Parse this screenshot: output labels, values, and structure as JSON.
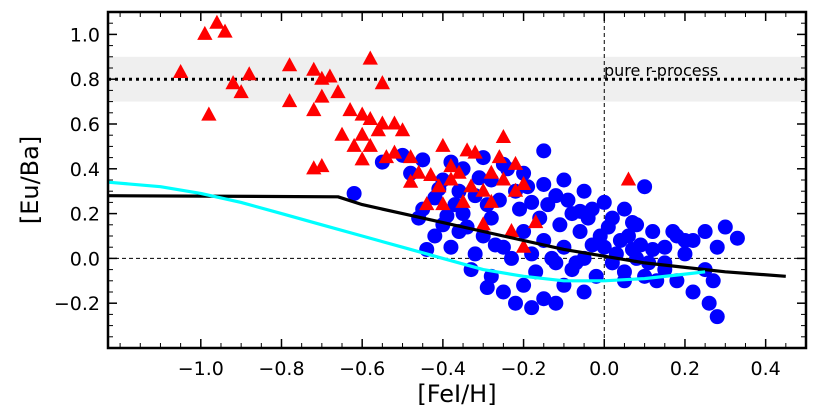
{
  "chart_data": {
    "type": "scatter",
    "xlabel": "[FeI/H]",
    "ylabel": "[Eu/Ba]",
    "xlim": [
      -1.23,
      0.5
    ],
    "ylim": [
      -0.4,
      1.1
    ],
    "xticks": [
      -1.0,
      -0.8,
      -0.6,
      -0.4,
      -0.2,
      0.0,
      0.2,
      0.4
    ],
    "xtick_labels": [
      "−1.0",
      "−0.8",
      "−0.6",
      "−0.4",
      "−0.2",
      "0.0",
      "0.2",
      "0.4"
    ],
    "yticks": [
      -0.2,
      0.0,
      0.2,
      0.4,
      0.6,
      0.8,
      1.0
    ],
    "ytick_labels": [
      "−0.2",
      "0.0",
      "0.2",
      "0.4",
      "0.6",
      "0.8",
      "1.0"
    ],
    "annotation": {
      "text": "pure r-process",
      "x": 0.08,
      "y": 0.84
    },
    "reference_lines": {
      "pure_r_value": 0.8,
      "pure_r_band": [
        0.7,
        0.9
      ],
      "horizontal_zero": 0.0,
      "vertical_zero": 0.0
    },
    "series": [
      {
        "name": "blue-circles",
        "marker": "circle",
        "color": "#0000ff",
        "points": [
          [
            -0.55,
            0.43
          ],
          [
            -0.48,
            0.38
          ],
          [
            -0.45,
            0.44
          ],
          [
            -0.5,
            0.46
          ],
          [
            -0.4,
            0.35
          ],
          [
            -0.42,
            0.27
          ],
          [
            -0.38,
            0.43
          ],
          [
            -0.35,
            0.4
          ],
          [
            -0.3,
            0.45
          ],
          [
            -0.32,
            0.28
          ],
          [
            -0.28,
            0.35
          ],
          [
            -0.25,
            0.42
          ],
          [
            -0.22,
            0.3
          ],
          [
            -0.2,
            0.38
          ],
          [
            -0.18,
            0.25
          ],
          [
            -0.15,
            0.33
          ],
          [
            -0.12,
            0.28
          ],
          [
            -0.1,
            0.35
          ],
          [
            -0.08,
            0.2
          ],
          [
            -0.05,
            0.3
          ],
          [
            -0.03,
            0.22
          ],
          [
            0.0,
            0.25
          ],
          [
            0.02,
            0.18
          ],
          [
            0.05,
            0.22
          ],
          [
            0.08,
            0.15
          ],
          [
            0.1,
            0.32
          ],
          [
            0.12,
            0.12
          ],
          [
            0.15,
            0.05
          ],
          [
            0.18,
            0.1
          ],
          [
            0.2,
            0.02
          ],
          [
            0.22,
            0.08
          ],
          [
            0.25,
            0.12
          ],
          [
            0.28,
            0.05
          ],
          [
            0.3,
            0.14
          ],
          [
            0.33,
            0.09
          ],
          [
            -0.15,
            0.48
          ],
          [
            -0.62,
            0.29
          ],
          [
            -0.45,
            0.22
          ],
          [
            -0.4,
            0.15
          ],
          [
            -0.35,
            0.2
          ],
          [
            -0.3,
            0.1
          ],
          [
            -0.28,
            0.18
          ],
          [
            -0.25,
            0.05
          ],
          [
            -0.2,
            0.12
          ],
          [
            -0.18,
            0.02
          ],
          [
            -0.15,
            0.08
          ],
          [
            -0.12,
            -0.02
          ],
          [
            -0.1,
            0.05
          ],
          [
            -0.08,
            -0.05
          ],
          [
            -0.05,
            0.0
          ],
          [
            -0.02,
            -0.08
          ],
          [
            0.0,
            0.05
          ],
          [
            0.02,
            -0.02
          ],
          [
            0.05,
            -0.06
          ],
          [
            0.08,
            0.0
          ],
          [
            0.1,
            -0.08
          ],
          [
            0.12,
            0.04
          ],
          [
            0.15,
            -0.05
          ],
          [
            0.18,
            -0.1
          ],
          [
            0.2,
            0.08
          ],
          [
            -0.25,
            -0.15
          ],
          [
            -0.2,
            -0.12
          ],
          [
            -0.15,
            -0.18
          ],
          [
            -0.1,
            -0.12
          ],
          [
            -0.05,
            -0.15
          ],
          [
            -0.28,
            -0.08
          ],
          [
            -0.22,
            -0.2
          ],
          [
            -0.18,
            -0.22
          ],
          [
            -0.12,
            -0.2
          ],
          [
            0.05,
            -0.1
          ],
          [
            0.15,
            -0.02
          ],
          [
            0.25,
            -0.05
          ],
          [
            0.27,
            -0.1
          ],
          [
            0.22,
            -0.15
          ],
          [
            0.26,
            -0.2
          ],
          [
            0.28,
            -0.26
          ],
          [
            -0.33,
            -0.05
          ],
          [
            -0.38,
            0.05
          ],
          [
            -0.42,
            0.1
          ],
          [
            -0.46,
            0.18
          ],
          [
            -0.36,
            0.3
          ],
          [
            -0.31,
            0.36
          ],
          [
            -0.26,
            0.26
          ],
          [
            -0.21,
            0.22
          ],
          [
            -0.16,
            0.18
          ],
          [
            -0.11,
            0.15
          ],
          [
            -0.06,
            0.12
          ],
          [
            -0.01,
            0.1
          ],
          [
            0.04,
            0.08
          ],
          [
            0.09,
            0.06
          ],
          [
            -0.24,
            0.4
          ],
          [
            -0.19,
            0.32
          ],
          [
            -0.14,
            0.24
          ],
          [
            -0.09,
            0.26
          ],
          [
            -0.04,
            0.18
          ],
          [
            0.01,
            0.14
          ],
          [
            0.06,
            0.1
          ],
          [
            0.11,
            -0.02
          ],
          [
            -0.27,
            0.06
          ],
          [
            -0.17,
            -0.06
          ],
          [
            -0.07,
            -0.02
          ],
          [
            0.03,
            0.02
          ],
          [
            0.13,
            -0.1
          ],
          [
            -0.29,
            -0.13
          ],
          [
            -0.23,
            0.0
          ],
          [
            -0.13,
            0.0
          ],
          [
            -0.03,
            0.06
          ],
          [
            0.07,
            0.04
          ],
          [
            0.17,
            0.12
          ],
          [
            0.07,
            0.16
          ],
          [
            -0.06,
            0.21
          ],
          [
            -0.34,
            0.14
          ],
          [
            -0.37,
            0.24
          ],
          [
            -0.41,
            0.31
          ],
          [
            -0.44,
            0.04
          ],
          [
            -0.39,
            0.19
          ],
          [
            -0.36,
            0.12
          ],
          [
            -0.32,
            0.02
          ],
          [
            -0.29,
            0.24
          ]
        ]
      },
      {
        "name": "red-triangles",
        "marker": "triangle",
        "color": "#ff0000",
        "points": [
          [
            -0.96,
            1.05
          ],
          [
            -0.94,
            1.01
          ],
          [
            -0.99,
            1.0
          ],
          [
            -1.05,
            0.83
          ],
          [
            -0.92,
            0.78
          ],
          [
            -0.88,
            0.82
          ],
          [
            -0.78,
            0.86
          ],
          [
            -0.72,
            0.84
          ],
          [
            -0.7,
            0.8
          ],
          [
            -0.68,
            0.81
          ],
          [
            -0.58,
            0.89
          ],
          [
            -0.9,
            0.74
          ],
          [
            -0.78,
            0.7
          ],
          [
            -0.7,
            0.72
          ],
          [
            -0.66,
            0.74
          ],
          [
            -0.55,
            0.78
          ],
          [
            -0.98,
            0.64
          ],
          [
            -0.72,
            0.66
          ],
          [
            -0.63,
            0.66
          ],
          [
            -0.6,
            0.64
          ],
          [
            -0.55,
            0.6
          ],
          [
            -0.52,
            0.6
          ],
          [
            -0.5,
            0.57
          ],
          [
            -0.58,
            0.62
          ],
          [
            -0.56,
            0.57
          ],
          [
            -0.6,
            0.55
          ],
          [
            -0.58,
            0.5
          ],
          [
            -0.65,
            0.55
          ],
          [
            -0.62,
            0.5
          ],
          [
            -0.6,
            0.44
          ],
          [
            -0.52,
            0.47
          ],
          [
            -0.48,
            0.45
          ],
          [
            -0.46,
            0.38
          ],
          [
            -0.43,
            0.37
          ],
          [
            -0.4,
            0.5
          ],
          [
            -0.38,
            0.41
          ],
          [
            -0.36,
            0.38
          ],
          [
            -0.34,
            0.48
          ],
          [
            -0.32,
            0.47
          ],
          [
            -0.28,
            0.38
          ],
          [
            -0.25,
            0.54
          ],
          [
            -0.22,
            0.42
          ],
          [
            -0.25,
            0.35
          ],
          [
            -0.2,
            0.33
          ],
          [
            -0.3,
            0.3
          ],
          [
            -0.28,
            0.25
          ],
          [
            -0.35,
            0.25
          ],
          [
            -0.22,
            0.3
          ],
          [
            -0.3,
            0.15
          ],
          [
            -0.17,
            0.16
          ],
          [
            -0.2,
            0.05
          ],
          [
            -0.23,
            0.12
          ],
          [
            0.06,
            0.35
          ],
          [
            -0.44,
            0.24
          ],
          [
            -0.7,
            0.41
          ],
          [
            -0.72,
            0.4
          ],
          [
            -0.48,
            0.34
          ],
          [
            -0.41,
            0.32
          ],
          [
            -0.33,
            0.32
          ],
          [
            -0.26,
            0.45
          ],
          [
            -0.38,
            0.35
          ],
          [
            -0.54,
            0.45
          ],
          [
            -0.4,
            0.24
          ]
        ]
      }
    ],
    "lines": [
      {
        "name": "black-curve",
        "color": "#000000",
        "x": [
          -1.23,
          -0.66,
          -0.6,
          -0.5,
          -0.4,
          -0.3,
          -0.2,
          -0.1,
          0.0,
          0.1,
          0.2,
          0.3,
          0.45
        ],
        "y": [
          0.28,
          0.275,
          0.24,
          0.2,
          0.16,
          0.12,
          0.08,
          0.04,
          0.01,
          -0.02,
          -0.04,
          -0.06,
          -0.08
        ]
      },
      {
        "name": "cyan-curve",
        "color": "#00ffff",
        "x": [
          -1.23,
          -1.1,
          -1.0,
          -0.9,
          -0.8,
          -0.7,
          -0.6,
          -0.5,
          -0.4,
          -0.3,
          -0.2,
          -0.1,
          0.0,
          0.1,
          0.2,
          0.25
        ],
        "y": [
          0.34,
          0.32,
          0.29,
          0.25,
          0.2,
          0.15,
          0.1,
          0.05,
          0.0,
          -0.05,
          -0.08,
          -0.1,
          -0.1,
          -0.09,
          -0.07,
          -0.06
        ]
      }
    ]
  }
}
